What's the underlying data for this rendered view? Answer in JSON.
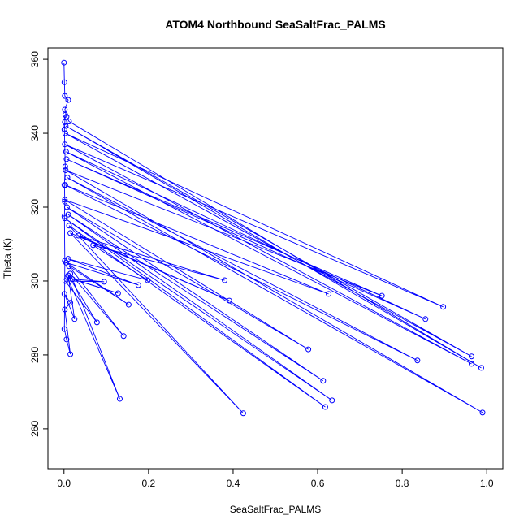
{
  "chart_data": {
    "type": "line",
    "title": "ATOM4 Northbound SeaSaltFrac_PALMS",
    "x_label": "SeaSaltFrac_PALMS",
    "y_label": "Theta (K)",
    "color": "#0000ff",
    "markers": true,
    "grid": false,
    "xlim": [
      -0.038,
      1.038
    ],
    "ylim": [
      249.2,
      363.1
    ],
    "xticks": [
      {
        "value": 0,
        "label": "0.0"
      },
      0.2,
      0.4,
      0.6,
      0.8,
      {
        "value": 1,
        "label": "1.0"
      }
    ],
    "yticks": [
      260,
      280,
      300,
      320,
      340,
      360
    ],
    "series": [
      {
        "name": "Northbound",
        "x": [
          0.0,
          0.001,
          0.002,
          0.01,
          0.002,
          0.006,
          0.012,
          0.987,
          0.004,
          0.964,
          0.003,
          0.897,
          0.002,
          0.964,
          0.005,
          0.855,
          0.006,
          0.752,
          0.004,
          0.99,
          0.008,
          0.836,
          0.003,
          0.626,
          0.002,
          0.578,
          0.007,
          0.613,
          0.01,
          0.634,
          0.002,
          0.618,
          0.012,
          0.424,
          0.015,
          0.391,
          0.034,
          0.38,
          0.069,
          0.198,
          0.01,
          0.176,
          0.005,
          0.153,
          0.012,
          0.141,
          0.015,
          0.132,
          0.008,
          0.128,
          0.02,
          0.095,
          0.003,
          0.078,
          0.01,
          0.025,
          0.001,
          0.015,
          0.002,
          0.015,
          0.006,
          0.001,
          0.002,
          0.001,
          0.002,
          0.001,
          0.003,
          0.001,
          0.002,
          0.003
        ],
        "values": [
          359.1,
          353.8,
          350.1,
          349.0,
          346.4,
          344.5,
          343.2,
          276.5,
          342.0,
          279.6,
          340.0,
          293.0,
          337.0,
          277.6,
          335.0,
          289.7,
          333.0,
          296.0,
          330.0,
          264.4,
          328.0,
          278.5,
          326.0,
          296.5,
          322.0,
          281.5,
          320.0,
          273.0,
          318.0,
          267.7,
          317.0,
          265.9,
          315.0,
          264.2,
          313.0,
          294.7,
          312.3,
          300.2,
          309.7,
          300.2,
          306.0,
          298.9,
          305.0,
          293.6,
          304.0,
          285.1,
          302.0,
          268.1,
          301.0,
          296.7,
          300.5,
          299.8,
          300.0,
          288.8,
          301.5,
          289.7,
          296.5,
          294.1,
          292.3,
          280.2,
          284.2,
          287.0,
          305.5,
          317.5,
          321.5,
          326.0,
          331.0,
          341.0,
          343.0,
          345.0
        ]
      }
    ]
  }
}
